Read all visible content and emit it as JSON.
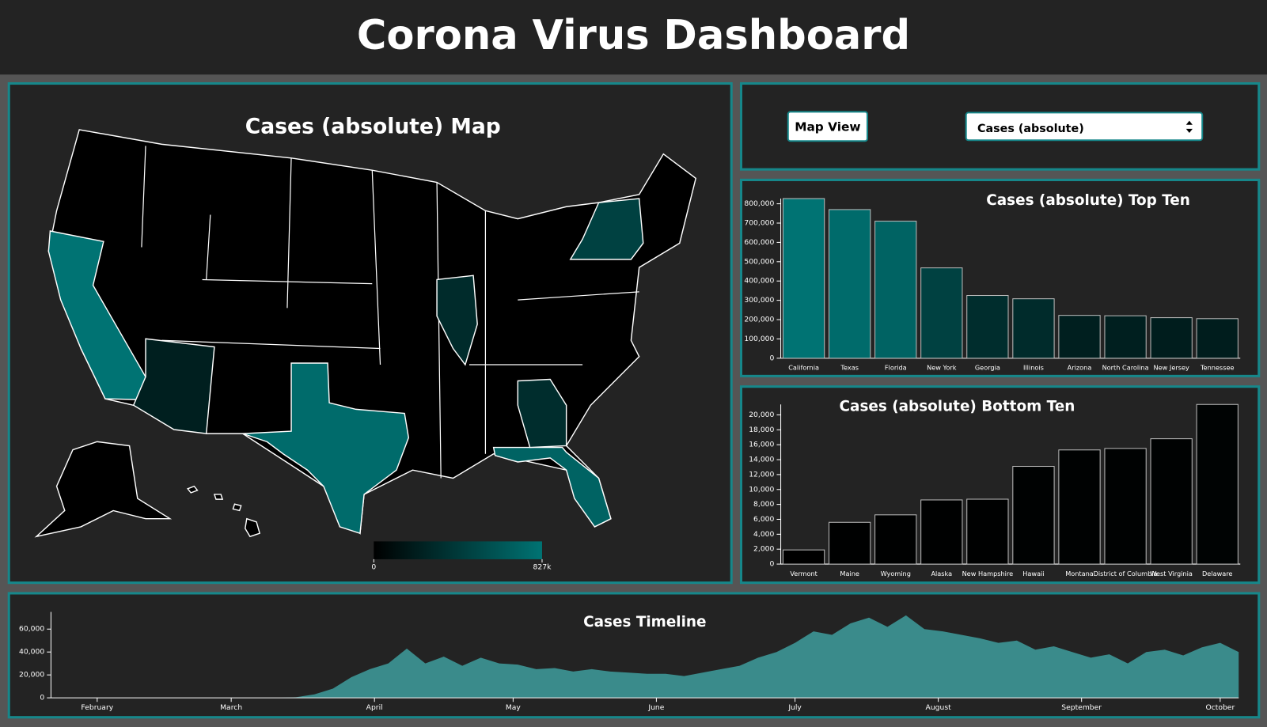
{
  "header": {
    "title": "Corona Virus Dashboard"
  },
  "controls": {
    "button": "Map View",
    "select": "Cases (absolute)"
  },
  "map": {
    "title": "Cases (absolute) Map",
    "color_scale": [
      "#000000",
      "#007373"
    ],
    "colorbar_ticks": [
      0,
      {
        "value": 827000,
        "label": "827k"
      }
    ]
  },
  "chart_data": [
    {
      "type": "bar",
      "title": "Cases (absolute) Top Ten",
      "categories": [
        "California",
        "Texas",
        "Florida",
        "New York",
        "Georgia",
        "Illinois",
        "Arizona",
        "North Carolina",
        "New Jersey",
        "Tennessee"
      ],
      "values": [
        827000,
        770000,
        710000,
        468000,
        325000,
        308000,
        222000,
        220000,
        210000,
        205000
      ],
      "ylim": [
        0,
        827000
      ],
      "yticks": [
        0,
        {
          "value": 100000,
          "label": "100,000"
        },
        {
          "value": 200000,
          "label": "200,000"
        },
        {
          "value": 300000,
          "label": "300,000"
        },
        {
          "value": 400000,
          "label": "400,000"
        },
        {
          "value": 500000,
          "label": "500,000"
        },
        {
          "value": 600000,
          "label": "600,000"
        },
        {
          "value": 700000,
          "label": "700,000"
        },
        {
          "value": 800000,
          "label": "800,000"
        }
      ]
    },
    {
      "type": "bar",
      "title": "Cases (absolute) Bottom Ten",
      "categories": [
        "Vermont",
        "Maine",
        "Wyoming",
        "Alaska",
        "New Hampshire",
        "Hawaii",
        "Montana",
        "District of Columbia",
        "West Virginia",
        "Delaware"
      ],
      "values": [
        1900,
        5600,
        6600,
        8600,
        8700,
        13100,
        15300,
        15500,
        16800,
        21400
      ],
      "ylim": [
        0,
        21400
      ],
      "yticks": [
        0,
        {
          "value": 2000,
          "label": "2,000"
        },
        {
          "value": 4000,
          "label": "4,000"
        },
        {
          "value": 6000,
          "label": "6,000"
        },
        {
          "value": 8000,
          "label": "8,000"
        },
        {
          "value": 10000,
          "label": "10,000"
        },
        {
          "value": 12000,
          "label": "12,000"
        },
        {
          "value": 14000,
          "label": "14,000"
        },
        {
          "value": 16000,
          "label": "16,000"
        },
        {
          "value": 18000,
          "label": "18,000"
        },
        {
          "value": 20000,
          "label": "20,000"
        }
      ]
    },
    {
      "type": "area",
      "title": "Cases Timeline",
      "color": "#3a8b8b",
      "x": [
        22,
        26,
        30,
        34,
        38,
        42,
        46,
        50,
        54,
        58,
        62,
        66,
        70,
        74,
        78,
        82,
        86,
        90,
        94,
        98,
        102,
        106,
        110,
        114,
        118,
        122,
        126,
        130,
        134,
        138,
        142,
        146,
        150,
        154,
        158,
        162,
        166,
        170,
        174,
        178,
        182,
        186,
        190,
        194,
        198,
        202,
        206,
        210,
        214,
        218,
        222,
        226,
        230,
        234,
        238,
        242,
        246,
        250,
        254,
        258,
        262,
        266,
        270,
        274,
        278
      ],
      "values": [
        0,
        0,
        0,
        0,
        0,
        0,
        0,
        0,
        0,
        0,
        0,
        0,
        0,
        500,
        3000,
        8000,
        18000,
        25000,
        30000,
        43000,
        30000,
        36000,
        28000,
        35000,
        30000,
        29000,
        25000,
        26000,
        23000,
        25000,
        23000,
        22000,
        21000,
        21000,
        19000,
        22000,
        25000,
        28000,
        35000,
        40000,
        48000,
        58000,
        55000,
        65000,
        70000,
        62000,
        72000,
        60000,
        58000,
        55000,
        52000,
        48000,
        50000,
        42000,
        45000,
        40000,
        35000,
        38000,
        30000,
        40000,
        42000,
        37000,
        44000,
        48000,
        40000
      ],
      "xlim": [
        21,
        278
      ],
      "xticks": [
        {
          "value": 31,
          "label": "February"
        },
        {
          "value": 60,
          "label": "March"
        },
        {
          "value": 91,
          "label": "April"
        },
        {
          "value": 121,
          "label": "May"
        },
        {
          "value": 152,
          "label": "June"
        },
        {
          "value": 182,
          "label": "July"
        },
        {
          "value": 213,
          "label": "August"
        },
        {
          "value": 244,
          "label": "September"
        },
        {
          "value": 274,
          "label": "October"
        }
      ],
      "ylim": [
        0,
        75000
      ],
      "yticks": [
        0,
        {
          "value": 20000,
          "label": "20,000"
        },
        {
          "value": 40000,
          "label": "40,000"
        },
        {
          "value": 60000,
          "label": "60,000"
        }
      ]
    }
  ]
}
